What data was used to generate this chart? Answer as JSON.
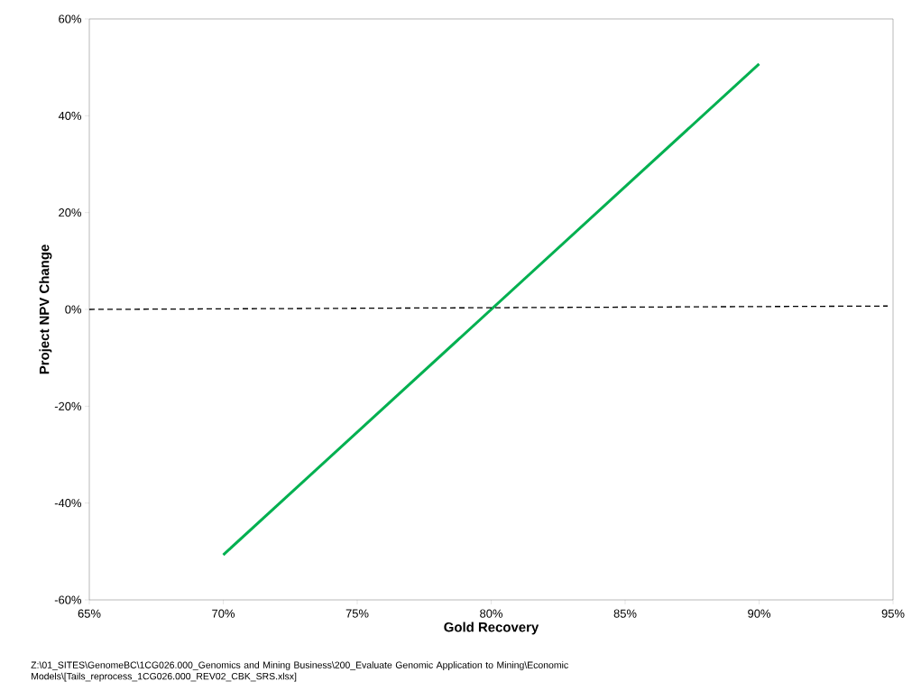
{
  "chart_data": {
    "type": "line",
    "xlabel": "Gold Recovery",
    "ylabel": "Project NPV Change",
    "xlim": [
      65,
      95
    ],
    "ylim": [
      -60,
      60
    ],
    "xticks": [
      {
        "value": 65,
        "label": "65%"
      },
      {
        "value": 70,
        "label": "70%"
      },
      {
        "value": 75,
        "label": "75%"
      },
      {
        "value": 80,
        "label": "80%"
      },
      {
        "value": 85,
        "label": "85%"
      },
      {
        "value": 90,
        "label": "90%"
      },
      {
        "value": 95,
        "label": "95%"
      }
    ],
    "yticks": [
      {
        "value": -60,
        "label": "-60%"
      },
      {
        "value": -40,
        "label": "-40%"
      },
      {
        "value": -20,
        "label": "-20%"
      },
      {
        "value": 0,
        "label": "0%"
      },
      {
        "value": 20,
        "label": "20%"
      },
      {
        "value": 40,
        "label": "40%"
      },
      {
        "value": 60,
        "label": "60%"
      }
    ],
    "series": [
      {
        "color": "#00b050",
        "x": [
          70,
          90
        ],
        "values": [
          -50.7,
          50.7
        ],
        "line_style": "solid"
      },
      {
        "color": "#000000",
        "x": [
          65,
          94.8
        ],
        "values": [
          0,
          0.7
        ],
        "line_style": "dashed"
      }
    ],
    "grid": false,
    "legend": false,
    "marker": "none",
    "annotations": [
      "Z:\\01_SITES\\GenomeBC\\1CG026.000_Genomics and Mining Business\\200_Evaluate Genomic Application to Mining\\Economic Models\\[Tails_reprocess_1CG026.000_REV02_CBK_SRS.xlsx]"
    ]
  }
}
